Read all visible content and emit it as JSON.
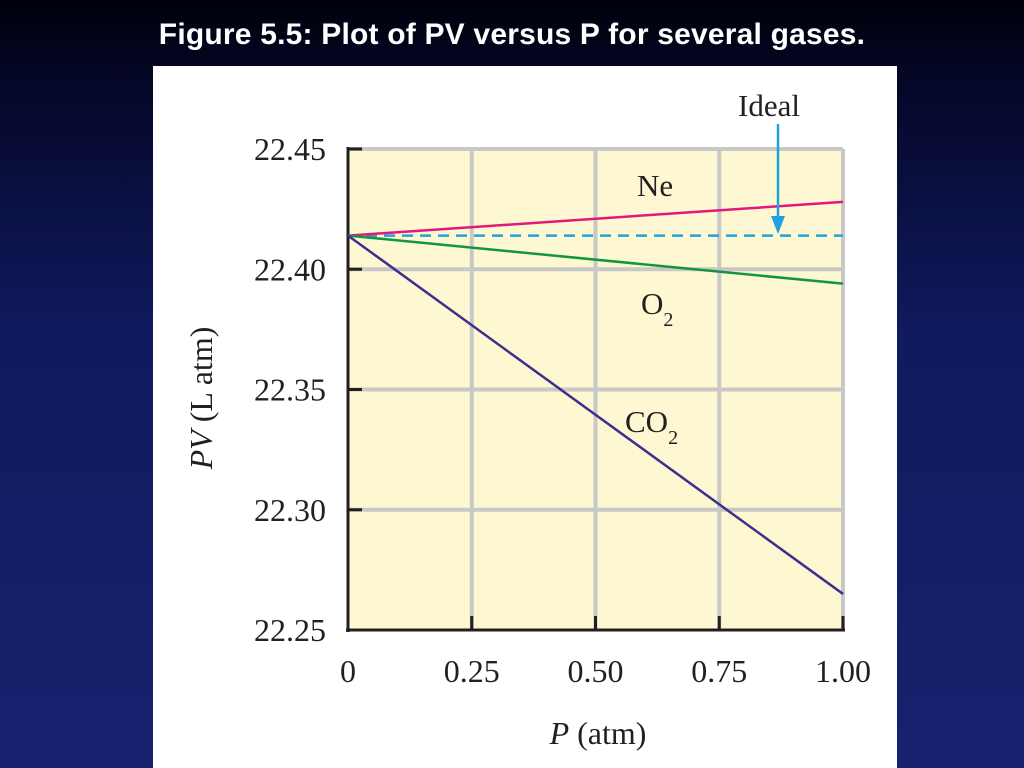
{
  "slide": {
    "title": "Figure 5.5:  Plot of PV versus P for several gases."
  },
  "colors": {
    "plot_bg": "#fdf8d2",
    "grid": "#c8c8c8",
    "ideal": "#1fa3e0",
    "ne": "#e2197a",
    "o2": "#13953f",
    "co2": "#3d2f8c"
  },
  "chart_data": {
    "type": "line",
    "title": "",
    "xlabel_italic": "P",
    "xlabel_rest": " (atm)",
    "ylabel_italic": "PV",
    "ylabel_rest": " (L atm)",
    "xlim": [
      0,
      1.0
    ],
    "ylim": [
      22.25,
      22.45
    ],
    "grid": true,
    "x_ticks": [
      {
        "value": 0,
        "label": "0"
      },
      {
        "value": 0.25,
        "label": "0.25"
      },
      {
        "value": 0.5,
        "label": "0.50"
      },
      {
        "value": 0.75,
        "label": "0.75"
      },
      {
        "value": 1.0,
        "label": "1.00"
      }
    ],
    "y_ticks": [
      {
        "value": 22.25,
        "label": "22.25"
      },
      {
        "value": 22.3,
        "label": "22.30"
      },
      {
        "value": 22.35,
        "label": "22.35"
      },
      {
        "value": 22.4,
        "label": "22.40"
      },
      {
        "value": 22.45,
        "label": "22.45"
      }
    ],
    "series": [
      {
        "key": "ideal",
        "name": "Ideal",
        "subscript": "",
        "x": [
          0,
          1.0
        ],
        "y": [
          22.414,
          22.414
        ],
        "dashed": true
      },
      {
        "key": "ne",
        "name": "Ne",
        "subscript": "",
        "x": [
          0,
          1.0
        ],
        "y": [
          22.414,
          22.428
        ],
        "dashed": false
      },
      {
        "key": "o2",
        "name": "O",
        "subscript": "2",
        "x": [
          0,
          1.0
        ],
        "y": [
          22.414,
          22.394
        ],
        "dashed": false
      },
      {
        "key": "co2",
        "name": "CO",
        "subscript": "2",
        "x": [
          0,
          1.0
        ],
        "y": [
          22.414,
          22.265
        ],
        "dashed": false
      }
    ]
  }
}
